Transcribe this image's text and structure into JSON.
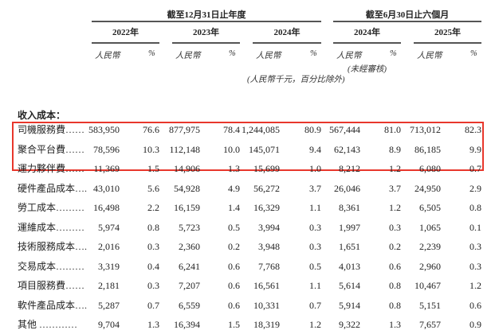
{
  "header": {
    "group_fy": "截至12月31日止年度",
    "group_h1": "截至6月30日止六個月",
    "years": [
      "2022年",
      "2023年",
      "2024年",
      "2024年",
      "2025年"
    ],
    "currency_label": "人民幣",
    "percent_label": "%",
    "unaudited": "(未經審核)",
    "unit_note": "(人民幣千元，百分比除外)"
  },
  "section_title": "收入成本：",
  "highlight_color": "#e8372c",
  "rows": [
    {
      "label": "司機服務費……",
      "values": [
        "583,950",
        "76.6",
        "877,975",
        "78.4",
        "1,244,085",
        "80.9",
        "567,444",
        "81.0",
        "713,012",
        "82.3"
      ]
    },
    {
      "label": "聚合平台費……",
      "values": [
        "78,596",
        "10.3",
        "112,148",
        "10.0",
        "145,071",
        "9.4",
        "62,143",
        "8.9",
        "86,185",
        "9.9"
      ]
    },
    {
      "label": "運力夥伴費……",
      "values": [
        "11,369",
        "1.5",
        "14,906",
        "1.3",
        "15,699",
        "1.0",
        "8,212",
        "1.2",
        "6,080",
        "0.7"
      ]
    },
    {
      "label": "硬件產品成本….",
      "values": [
        "43,010",
        "5.6",
        "54,928",
        "4.9",
        "56,272",
        "3.7",
        "26,046",
        "3.7",
        "24,950",
        "2.9"
      ]
    },
    {
      "label": "勞工成本………",
      "values": [
        "16,498",
        "2.2",
        "16,159",
        "1.4",
        "16,329",
        "1.1",
        "8,361",
        "1.2",
        "6,505",
        "0.8"
      ]
    },
    {
      "label": "運維成本………",
      "values": [
        "5,974",
        "0.8",
        "5,723",
        "0.5",
        "3,994",
        "0.3",
        "1,997",
        "0.3",
        "1,065",
        "0.1"
      ]
    },
    {
      "label": "技術服務成本….",
      "values": [
        "2,016",
        "0.3",
        "2,360",
        "0.2",
        "3,948",
        "0.3",
        "1,651",
        "0.2",
        "2,239",
        "0.3"
      ]
    },
    {
      "label": "交易成本………",
      "values": [
        "3,319",
        "0.4",
        "6,241",
        "0.6",
        "7,768",
        "0.5",
        "4,013",
        "0.6",
        "2,960",
        "0.3"
      ]
    },
    {
      "label": "項目服務費……",
      "values": [
        "2,181",
        "0.3",
        "7,207",
        "0.6",
        "16,561",
        "1.1",
        "5,614",
        "0.8",
        "10,467",
        "1.2"
      ]
    },
    {
      "label": "軟件產品成本….",
      "values": [
        "5,287",
        "0.7",
        "6,559",
        "0.6",
        "10,331",
        "0.7",
        "5,914",
        "0.8",
        "5,151",
        "0.6"
      ]
    },
    {
      "label": "其他 …………",
      "values": [
        "9,704",
        "1.3",
        "16,394",
        "1.5",
        "18,319",
        "1.2",
        "9,322",
        "1.3",
        "7,657",
        "0.9"
      ]
    }
  ]
}
